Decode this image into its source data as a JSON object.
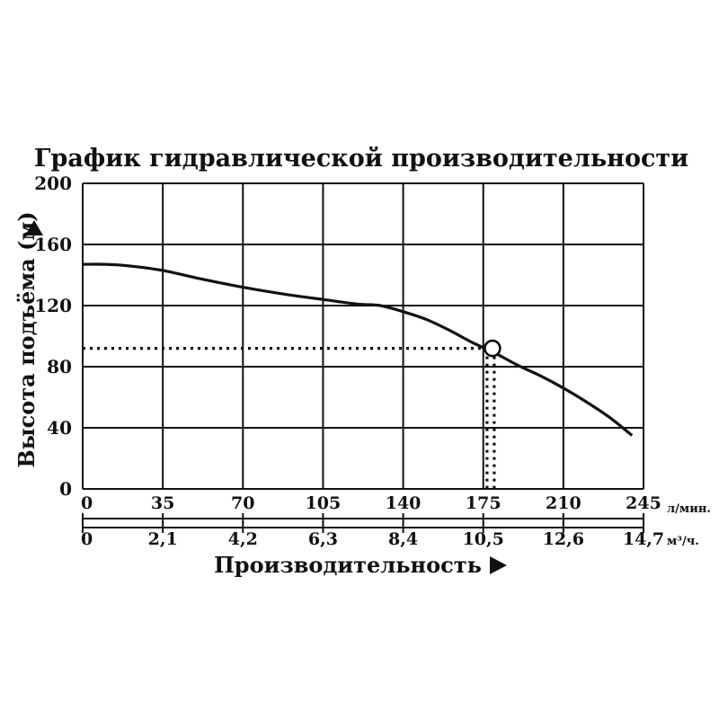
{
  "chart_data": {
    "type": "line",
    "title": "График гидравлической производительности",
    "ylabel": "Высота подъёма (м)",
    "xlabel": "Производительность",
    "ylim": [
      0,
      200
    ],
    "xlim": [
      0,
      245
    ],
    "grid": true,
    "y_ticks": [
      "0",
      "40",
      "80",
      "120",
      "160",
      "200"
    ],
    "x_ticks": [
      "0",
      "35",
      "70",
      "105",
      "140",
      "175",
      "210",
      "245"
    ],
    "x_unit": "л/мин.",
    "x2_ticks": [
      "0",
      "2,1",
      "4,2",
      "6,3",
      "8,4",
      "10,5",
      "12,6",
      "14,7"
    ],
    "x2_unit": "м³/ч.",
    "series": [
      {
        "x": [
          0,
          10,
          20,
          35,
          50,
          70,
          90,
          105,
          120,
          130,
          140,
          150,
          160,
          170,
          180,
          190,
          200,
          210,
          220,
          230,
          240
        ],
        "y": [
          147,
          147,
          146,
          143,
          138,
          132,
          127,
          124,
          121,
          120,
          116,
          111,
          104,
          96,
          89,
          81,
          74,
          66,
          57,
          47,
          35
        ]
      }
    ],
    "operating_point": {
      "x": 179,
      "y": 92
    },
    "colors": {
      "line": "#111111",
      "grid": "#111111"
    }
  }
}
